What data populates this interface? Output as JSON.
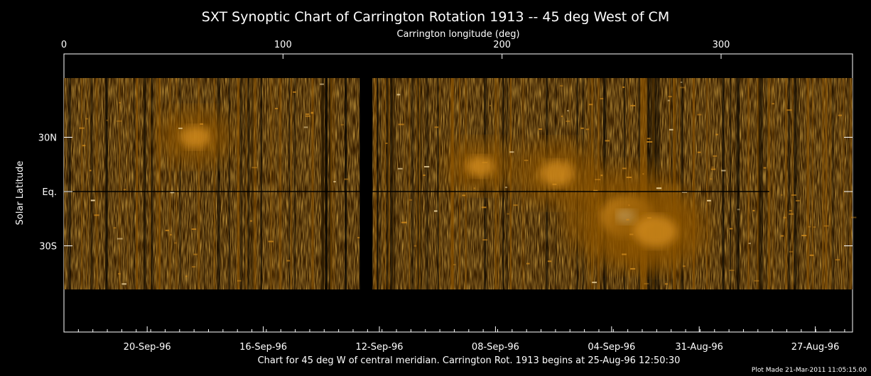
{
  "chart_data": {
    "type": "heatmap",
    "title": "SXT Synoptic Chart of Carrington Rotation 1913 -- 45 deg West of CM",
    "top_axis_label": "Carrington longitude (deg)",
    "top_ticks": [
      0,
      100,
      200,
      300
    ],
    "xlim": [
      0,
      360
    ],
    "ylabel": "Solar Latitude",
    "y_ticks": [
      {
        "label": "30N",
        "value": 30
      },
      {
        "label": "Eq.",
        "value": 0
      },
      {
        "label": "30S",
        "value": -30
      }
    ],
    "bottom_ticks": [
      {
        "label": "20-Sep-96",
        "lon": 38
      },
      {
        "label": "16-Sep-96",
        "lon": 91
      },
      {
        "label": "12-Sep-96",
        "lon": 144
      },
      {
        "label": "08-Sep-96",
        "lon": 197
      },
      {
        "label": "04-Sep-96",
        "lon": 250
      },
      {
        "label": "31-Aug-96",
        "lon": 290
      },
      {
        "label": "27-Aug-96",
        "lon": 343
      }
    ],
    "caption": "Chart for 45 deg W of central meridian.  Carrington Rot. 1913 begins at 25-Aug-96 12:50:30",
    "plot_made": "Plot Made 21-Mar-2011 11:05:15.00",
    "colormap": [
      "#000000",
      "#3a2000",
      "#8a5200",
      "#d08a1c",
      "#ffe6b0"
    ],
    "bright_regions": [
      {
        "lon": 257,
        "lat": -14,
        "intensity": 1.0
      },
      {
        "lon": 270,
        "lat": -22,
        "intensity": 0.75
      },
      {
        "lon": 225,
        "lat": 10,
        "intensity": 0.55
      },
      {
        "lon": 60,
        "lat": 30,
        "intensity": 0.45
      },
      {
        "lon": 190,
        "lat": 14,
        "intensity": 0.4
      }
    ]
  }
}
